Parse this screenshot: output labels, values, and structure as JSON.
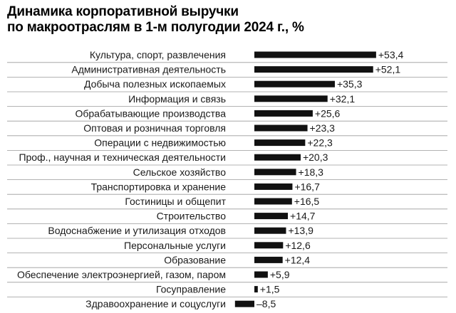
{
  "title_lines": [
    "Динамика корпоративной выручки",
    "по макроотраслям в 1-м полугодии 2024 г., %"
  ],
  "colors": {
    "bar": "#111111",
    "separator": "#9a9a9a"
  },
  "chart_data": {
    "type": "bar",
    "orientation": "horizontal",
    "title": "Динамика корпоративной выручки по макроотраслям в 1-м полугодии 2024 г., %",
    "xlabel": "",
    "ylabel": "",
    "grid": false,
    "xlim": [
      -10,
      55
    ],
    "categories": [
      "Культура, спорт, развлечения",
      "Административная деятельность",
      "Добыча полезных ископаемых",
      "Информация и связь",
      "Обрабатывающие производства",
      "Оптовая и розничная торговля",
      "Операции с недвижимостью",
      "Проф., научная и техническая деятельности",
      "Сельское хозяйство",
      "Транспортировка и хранение",
      "Гостиницы и общепит",
      "Строительство",
      "Водоснабжение и утилизация отходов",
      "Персональные услуги",
      "Образование",
      "Обеспечение электроэнергией, газом, паром",
      "Госуправление",
      "Здравоохранение и соцуслуги"
    ],
    "values": [
      53.4,
      52.1,
      35.3,
      32.1,
      25.6,
      23.3,
      22.3,
      20.3,
      18.3,
      16.7,
      16.5,
      14.7,
      13.9,
      12.6,
      12.4,
      5.9,
      1.5,
      -8.5
    ],
    "value_labels": [
      "+53,4",
      "+52,1",
      "+35,3",
      "+32,1",
      "+25,6",
      "+23,3",
      "+22,3",
      "+20,3",
      "+18,3",
      "+16,7",
      "+16,5",
      "+14,7",
      "+13,9",
      "+12,6",
      "+12,4",
      "+5,9",
      "+1,5",
      "–8,5"
    ]
  }
}
